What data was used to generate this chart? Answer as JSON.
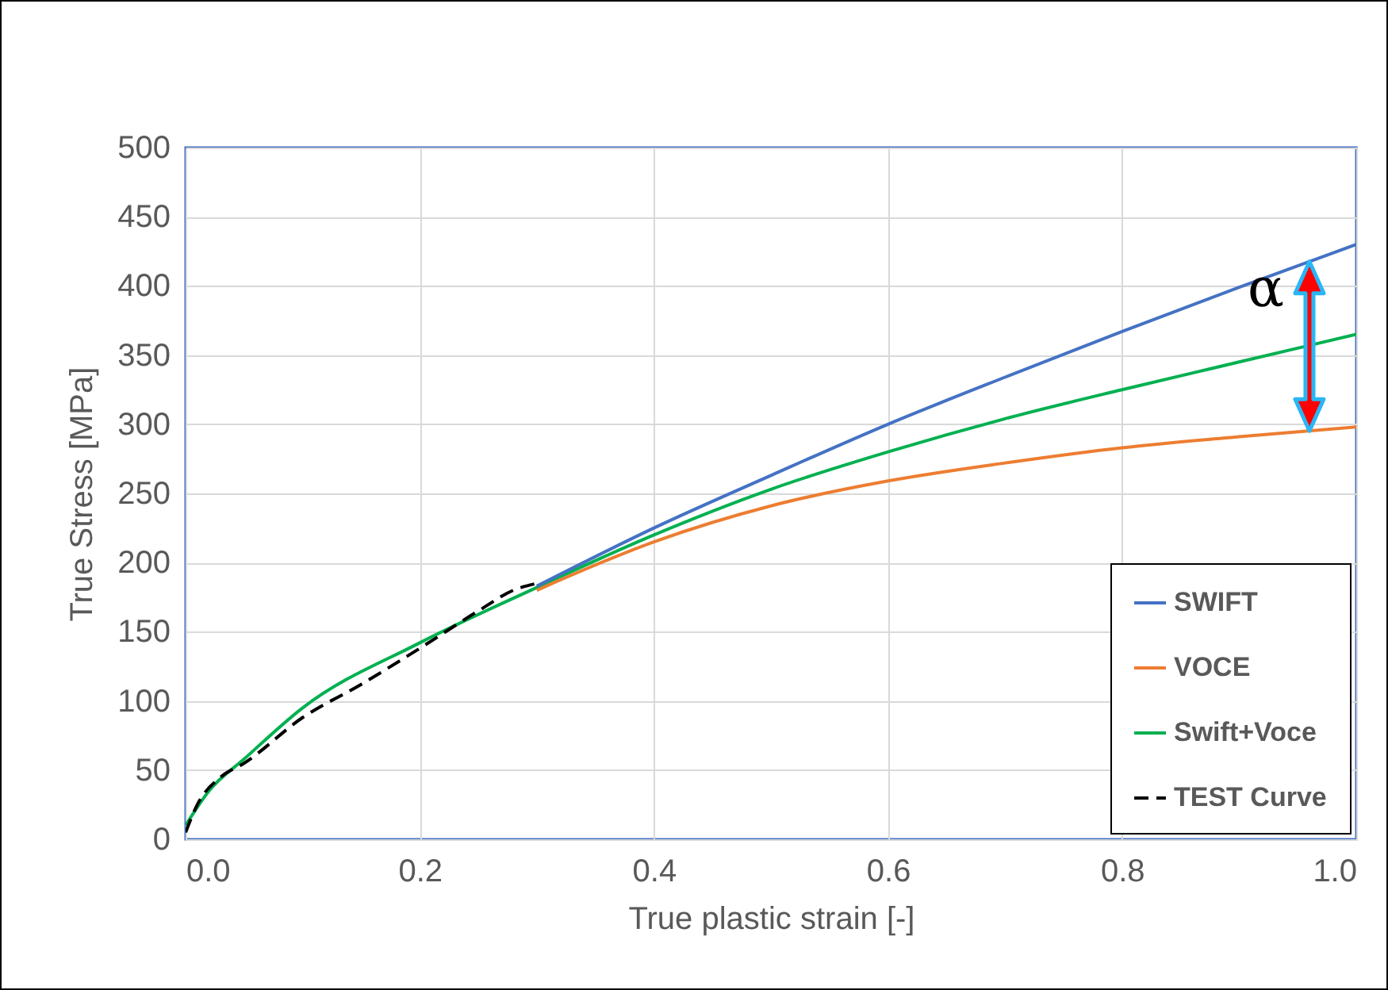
{
  "chart_data": {
    "type": "line",
    "xlabel": "True plastic strain [-]",
    "ylabel": "True Stress [MPa]",
    "xlim": [
      0,
      1
    ],
    "ylim": [
      0,
      500
    ],
    "xticks": [
      {
        "value": 0,
        "label": "0.0"
      },
      {
        "value": 0.2,
        "label": "0.2"
      },
      {
        "value": 0.4,
        "label": "0.4"
      },
      {
        "value": 0.6,
        "label": "0.6"
      },
      {
        "value": 0.8,
        "label": "0.8"
      },
      {
        "value": 1,
        "label": "1.0"
      }
    ],
    "yticks": [
      0,
      50,
      100,
      150,
      200,
      250,
      300,
      350,
      400,
      450,
      500
    ],
    "grid": true,
    "legend": "bottom right",
    "annotations": [
      "α"
    ],
    "series": [
      {
        "name": "SWIFT",
        "color": "#4472c4",
        "x": [
          0.3,
          0.4,
          0.5,
          0.6,
          0.7,
          0.8,
          0.9,
          1.0
        ],
        "values": [
          183,
          225,
          263,
          300,
          334,
          367,
          399,
          430
        ]
      },
      {
        "name": "VOCE",
        "color": "#ed7d31",
        "x": [
          0.3,
          0.4,
          0.5,
          0.6,
          0.7,
          0.8,
          0.9,
          1.0
        ],
        "values": [
          180,
          215,
          241,
          259,
          272,
          283,
          291,
          298
        ]
      },
      {
        "name": "Swift+Voce",
        "color": "#00b050",
        "x": [
          0,
          0.02,
          0.05,
          0.1,
          0.2,
          0.3,
          0.4,
          0.5,
          0.6,
          0.7,
          0.8,
          0.9,
          1.0
        ],
        "values": [
          10,
          35,
          58,
          95,
          142,
          182,
          220,
          253,
          280,
          304,
          325,
          345,
          365
        ]
      },
      {
        "name": "TEST Curve",
        "color": "#000000",
        "line_style": "dashed",
        "x": [
          0,
          0.01,
          0.03,
          0.05,
          0.1,
          0.15,
          0.2,
          0.25,
          0.28,
          0.3
        ],
        "values": [
          5,
          25,
          45,
          55,
          88,
          112,
          138,
          165,
          180,
          185
        ]
      }
    ]
  }
}
